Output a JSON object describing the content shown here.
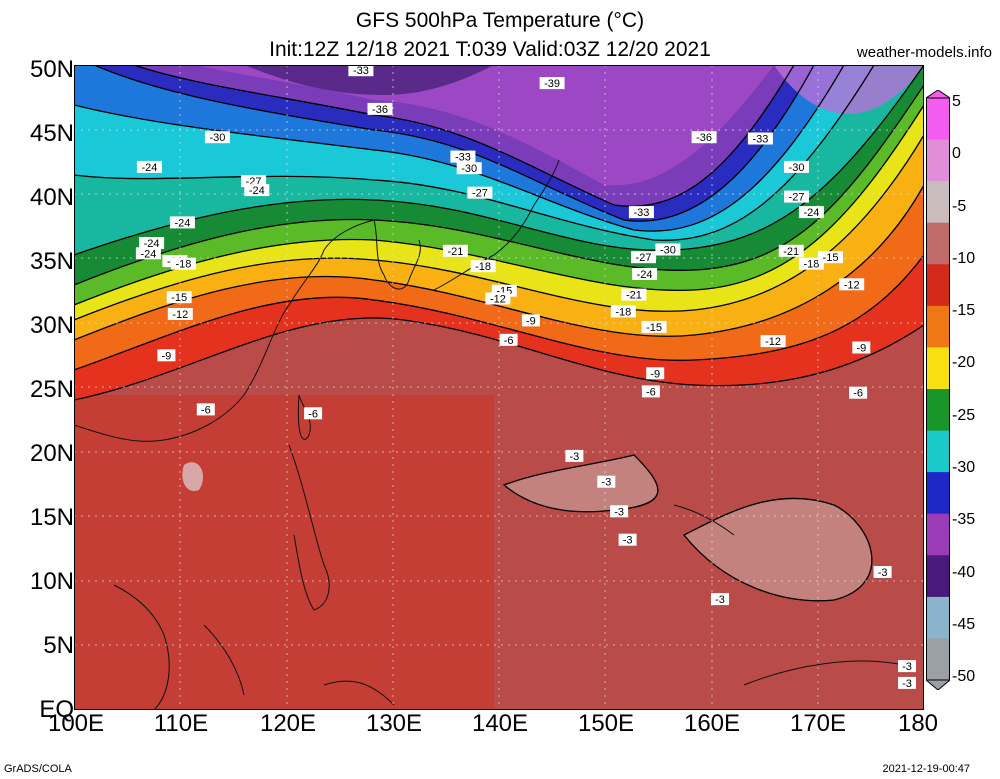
{
  "header": {
    "title_line1": "GFS 500hPa Temperature (°C)",
    "title_line2": "Init:12Z 12/18 2021 T:039 Valid:03Z 12/20 2021",
    "site": "weather-models.info"
  },
  "axes": {
    "lat_labels": [
      "50N",
      "45N",
      "40N",
      "35N",
      "30N",
      "25N",
      "20N",
      "15N",
      "10N",
      "5N",
      "EQ"
    ],
    "lon_labels": [
      "100E",
      "110E",
      "120E",
      "130E",
      "140E",
      "150E",
      "160E",
      "170E",
      "180"
    ]
  },
  "colorbar": {
    "labels": [
      "5",
      "0",
      "-5",
      "-10",
      "-15",
      "-20",
      "-25",
      "-30",
      "-35",
      "-40",
      "-45",
      "-50"
    ],
    "colors": [
      "#f45cf0",
      "#e08ed8",
      "#c8bcbc",
      "#c06a6a",
      "#d42a1c",
      "#f07814",
      "#f8e010",
      "#1a9628",
      "#1acaca",
      "#1e28c8",
      "#9a3cb8",
      "#4a1a7a",
      "#8ab4cc",
      "#9aa0a6"
    ]
  },
  "contour_labels": [
    {
      "text": "-39",
      "lat": 48.6,
      "lon": 145.0
    },
    {
      "text": "-36",
      "lat": 46.6,
      "lon": 128.8
    },
    {
      "text": "-36",
      "lat": 44.4,
      "lon": 159.3
    },
    {
      "text": "-33",
      "lat": 49.6,
      "lon": 127.0
    },
    {
      "text": "-33",
      "lat": 44.3,
      "lon": 164.6
    },
    {
      "text": "-33",
      "lat": 42.9,
      "lon": 136.6
    },
    {
      "text": "-33",
      "lat": 38.6,
      "lon": 153.4
    },
    {
      "text": "-30",
      "lat": 44.4,
      "lon": 113.5
    },
    {
      "text": "-30",
      "lat": 42.0,
      "lon": 137.2
    },
    {
      "text": "-30",
      "lat": 42.1,
      "lon": 168.0
    },
    {
      "text": "-30",
      "lat": 35.7,
      "lon": 155.9
    },
    {
      "text": "-27",
      "lat": 40.1,
      "lon": 138.2
    },
    {
      "text": "-27",
      "lat": 41.0,
      "lon": 116.9
    },
    {
      "text": "-27",
      "lat": 39.8,
      "lon": 168.0
    },
    {
      "text": "-27",
      "lat": 35.1,
      "lon": 153.6
    },
    {
      "text": "-24",
      "lat": 42.1,
      "lon": 107.1
    },
    {
      "text": "-24",
      "lat": 40.3,
      "lon": 117.2
    },
    {
      "text": "-24",
      "lat": 38.6,
      "lon": 169.4
    },
    {
      "text": "-24",
      "lat": 37.8,
      "lon": 110.2
    },
    {
      "text": "-24",
      "lat": 36.2,
      "lon": 107.3
    },
    {
      "text": "-24",
      "lat": 35.4,
      "lon": 107.0
    },
    {
      "text": "-24",
      "lat": 33.8,
      "lon": 153.7
    },
    {
      "text": "-21",
      "lat": 35.6,
      "lon": 135.9
    },
    {
      "text": "-21",
      "lat": 35.6,
      "lon": 167.5
    },
    {
      "text": "-21",
      "lat": 34.8,
      "lon": 109.5
    },
    {
      "text": "-21",
      "lat": 32.2,
      "lon": 152.7
    },
    {
      "text": "-18",
      "lat": 34.6,
      "lon": 110.3
    },
    {
      "text": "-18",
      "lat": 34.4,
      "lon": 138.5
    },
    {
      "text": "-18",
      "lat": 34.6,
      "lon": 169.4
    },
    {
      "text": "-18",
      "lat": 30.9,
      "lon": 151.7
    },
    {
      "text": "-15",
      "lat": 35.1,
      "lon": 171.2
    },
    {
      "text": "-15",
      "lat": 32.0,
      "lon": 109.9
    },
    {
      "text": "-15",
      "lat": 32.5,
      "lon": 140.5
    },
    {
      "text": "-15",
      "lat": 29.7,
      "lon": 154.6
    },
    {
      "text": "-12",
      "lat": 33.0,
      "lon": 173.2
    },
    {
      "text": "-12",
      "lat": 31.9,
      "lon": 139.9
    },
    {
      "text": "-12",
      "lat": 30.7,
      "lon": 110.0
    },
    {
      "text": "-12",
      "lat": 28.6,
      "lon": 165.8
    },
    {
      "text": "-9",
      "lat": 30.2,
      "lon": 143.0
    },
    {
      "text": "-9",
      "lat": 27.5,
      "lon": 108.7
    },
    {
      "text": "-9",
      "lat": 28.1,
      "lon": 174.1
    },
    {
      "text": "-9",
      "lat": 26.1,
      "lon": 154.7
    },
    {
      "text": "-6",
      "lat": 28.7,
      "lon": 140.9
    },
    {
      "text": "-6",
      "lat": 24.7,
      "lon": 154.3
    },
    {
      "text": "-6",
      "lat": 24.6,
      "lon": 173.8
    },
    {
      "text": "-6",
      "lat": 23.3,
      "lon": 112.4
    },
    {
      "text": "-6",
      "lat": 23.0,
      "lon": 122.5
    },
    {
      "text": "-3",
      "lat": 19.7,
      "lon": 147.1
    },
    {
      "text": "-3",
      "lat": 17.7,
      "lon": 150.1
    },
    {
      "text": "-3",
      "lat": 15.4,
      "lon": 151.3
    },
    {
      "text": "-3",
      "lat": 13.2,
      "lon": 152.1
    },
    {
      "text": "-3",
      "lat": 10.7,
      "lon": 176.1
    },
    {
      "text": "-3",
      "lat": 8.6,
      "lon": 160.8
    },
    {
      "text": "-3",
      "lat": 3.4,
      "lon": 178.4
    },
    {
      "text": "-3",
      "lat": 2.1,
      "lon": 178.4
    }
  ],
  "footer": {
    "left": "GrADS/COLA",
    "right": "2021-12-19-00:47"
  }
}
